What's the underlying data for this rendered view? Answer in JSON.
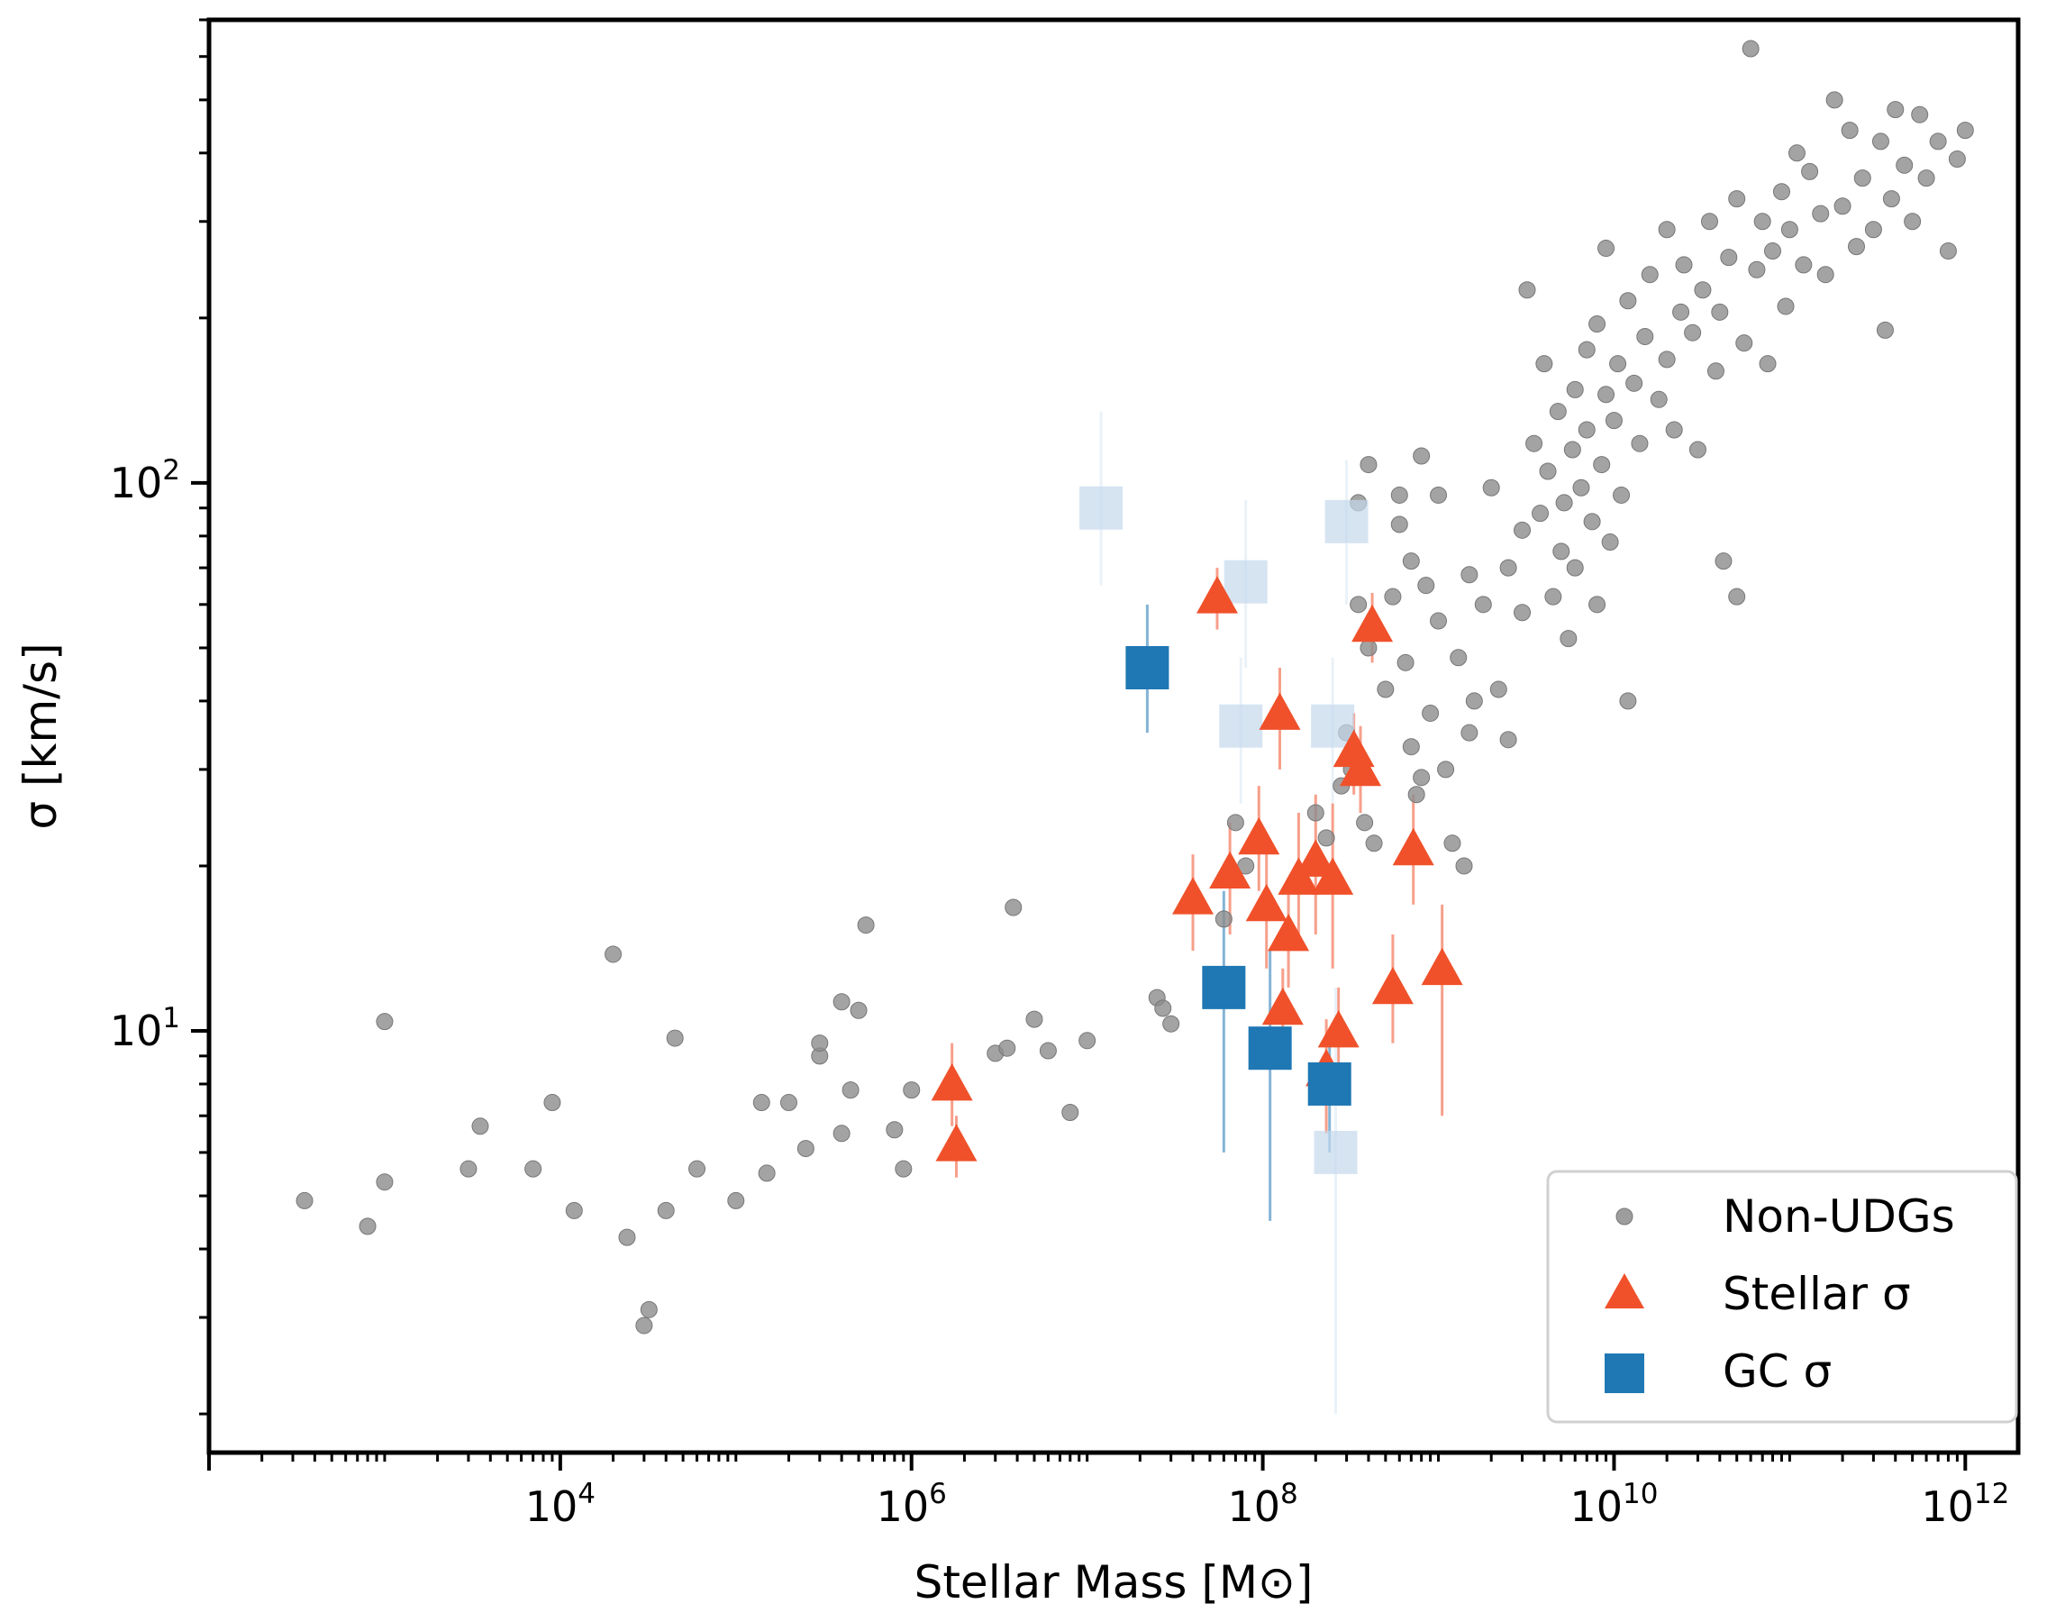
{
  "chart_data": {
    "type": "scatter",
    "xlabel": "Stellar Mass [M⊙]",
    "ylabel": "σ [km/s]",
    "xscale": "log",
    "yscale": "log",
    "xlim": [
      100,
      2000000000000
    ],
    "ylim": [
      1.7,
      700
    ],
    "x_ticks": [
      {
        "value": 10000,
        "base": "10",
        "exp": "4"
      },
      {
        "value": 1000000,
        "base": "10",
        "exp": "6"
      },
      {
        "value": 100000000,
        "base": "10",
        "exp": "8"
      },
      {
        "value": 10000000000,
        "base": "10",
        "exp": "10"
      },
      {
        "value": 1000000000000,
        "base": "10",
        "exp": "12"
      }
    ],
    "y_ticks": [
      {
        "value": 10,
        "base": "10",
        "exp": "1"
      },
      {
        "value": 100,
        "base": "10",
        "exp": "2"
      }
    ],
    "grid": false,
    "legend_position": "lower-right",
    "series": [
      {
        "name": "Non-UDGs",
        "marker": "circle",
        "color": "#8c8c8c",
        "points": [
          [
            350,
            4.9
          ],
          [
            800,
            4.4
          ],
          [
            1000,
            5.3
          ],
          [
            1000,
            10.4
          ],
          [
            3000,
            5.6
          ],
          [
            3500,
            6.7
          ],
          [
            7000,
            5.6
          ],
          [
            9000,
            7.4
          ],
          [
            12000,
            4.7
          ],
          [
            20000,
            13.8
          ],
          [
            24000,
            4.2
          ],
          [
            30000,
            2.9
          ],
          [
            32000,
            3.1
          ],
          [
            40000,
            4.7
          ],
          [
            45000,
            9.7
          ],
          [
            60000,
            5.6
          ],
          [
            100000,
            4.9
          ],
          [
            140000,
            7.4
          ],
          [
            150000,
            5.5
          ],
          [
            200000,
            7.4
          ],
          [
            250000,
            6.1
          ],
          [
            300000,
            9.0
          ],
          [
            300000,
            9.5
          ],
          [
            400000,
            6.5
          ],
          [
            400000,
            11.3
          ],
          [
            450000,
            7.8
          ],
          [
            500000,
            10.9
          ],
          [
            550000,
            15.6
          ],
          [
            800000,
            6.6
          ],
          [
            900000,
            5.6
          ],
          [
            1000000,
            7.8
          ],
          [
            3000000,
            9.1
          ],
          [
            3500000,
            9.3
          ],
          [
            3800000,
            16.8
          ],
          [
            5000000,
            10.5
          ],
          [
            6000000,
            9.2
          ],
          [
            8000000,
            7.1
          ],
          [
            10000000,
            9.6
          ],
          [
            25000000,
            11.5
          ],
          [
            27000000,
            11.0
          ],
          [
            30000000,
            10.3
          ],
          [
            60000000,
            16.0
          ],
          [
            70000000,
            24.0
          ],
          [
            80000000,
            20.0
          ],
          [
            200000000,
            25.0
          ],
          [
            230000000,
            22.5
          ],
          [
            280000000,
            28.0
          ],
          [
            300000000,
            35.0
          ],
          [
            320000000,
            30.0
          ],
          [
            350000000,
            60.0
          ],
          [
            350000000,
            92.0
          ],
          [
            380000000,
            24.0
          ],
          [
            400000000,
            108.0
          ],
          [
            400000000,
            50.0
          ],
          [
            430000000,
            22.0
          ],
          [
            500000000,
            42.0
          ],
          [
            550000000,
            62.0
          ],
          [
            600000000,
            84.0
          ],
          [
            600000000,
            95.0
          ],
          [
            650000000,
            47.0
          ],
          [
            700000000,
            33.0
          ],
          [
            700000000,
            72.0
          ],
          [
            750000000,
            27.0
          ],
          [
            800000000,
            112.0
          ],
          [
            800000000,
            29.0
          ],
          [
            850000000,
            65.0
          ],
          [
            900000000,
            38.0
          ],
          [
            1000000000,
            56.0
          ],
          [
            1000000000,
            95.0
          ],
          [
            1100000000,
            30.0
          ],
          [
            1200000000,
            22.0
          ],
          [
            1300000000,
            48.0
          ],
          [
            1400000000,
            20.0
          ],
          [
            1500000000,
            68.0
          ],
          [
            1500000000,
            35.0
          ],
          [
            1600000000,
            40.0
          ],
          [
            1800000000,
            60.0
          ],
          [
            2000000000,
            98.0
          ],
          [
            2200000000,
            42.0
          ],
          [
            2500000000,
            70.0
          ],
          [
            2500000000,
            34.0
          ],
          [
            3000000000,
            82.0
          ],
          [
            3000000000,
            58.0
          ],
          [
            3200000000,
            225.0
          ],
          [
            3500000000,
            118.0
          ],
          [
            3800000000,
            88.0
          ],
          [
            4000000000,
            165.0
          ],
          [
            4200000000,
            105.0
          ],
          [
            4500000000,
            62.0
          ],
          [
            4800000000,
            135.0
          ],
          [
            5000000000,
            75.0
          ],
          [
            5200000000,
            92.0
          ],
          [
            5500000000,
            52.0
          ],
          [
            5800000000,
            115.0
          ],
          [
            6000000000,
            148.0
          ],
          [
            6000000000,
            70.0
          ],
          [
            6500000000,
            98.0
          ],
          [
            7000000000,
            125.0
          ],
          [
            7000000000,
            175.0
          ],
          [
            7500000000,
            85.0
          ],
          [
            8000000000,
            195.0
          ],
          [
            8000000000,
            60.0
          ],
          [
            8500000000,
            108.0
          ],
          [
            9000000000,
            268.0
          ],
          [
            9000000000,
            145.0
          ],
          [
            9500000000,
            78.0
          ],
          [
            10000000000,
            130.0
          ],
          [
            10500000000,
            165.0
          ],
          [
            11000000000,
            95.0
          ],
          [
            12000000000,
            215.0
          ],
          [
            12000000000,
            40.0
          ],
          [
            13000000000,
            152.0
          ],
          [
            14000000000,
            118.0
          ],
          [
            15000000000,
            185.0
          ],
          [
            16000000000,
            240.0
          ],
          [
            18000000000,
            142.0
          ],
          [
            20000000000,
            168.0
          ],
          [
            20000000000,
            290.0
          ],
          [
            22000000000,
            125.0
          ],
          [
            24000000000,
            205.0
          ],
          [
            25000000000,
            250.0
          ],
          [
            28000000000,
            188.0
          ],
          [
            30000000000,
            115.0
          ],
          [
            32000000000,
            225.0
          ],
          [
            35000000000,
            300.0
          ],
          [
            38000000000,
            160.0
          ],
          [
            40000000000,
            205.0
          ],
          [
            42000000000,
            72.0
          ],
          [
            45000000000,
            258.0
          ],
          [
            50000000000,
            62.0
          ],
          [
            50000000000,
            330.0
          ],
          [
            55000000000,
            180.0
          ],
          [
            60000000000,
            620.0
          ],
          [
            65000000000,
            245.0
          ],
          [
            70000000000,
            300.0
          ],
          [
            75000000000,
            165.0
          ],
          [
            80000000000,
            265.0
          ],
          [
            90000000000,
            340.0
          ],
          [
            95000000000,
            210.0
          ],
          [
            100000000000,
            290.0
          ],
          [
            110000000000,
            400.0
          ],
          [
            120000000000,
            250.0
          ],
          [
            130000000000,
            370.0
          ],
          [
            150000000000,
            310.0
          ],
          [
            160000000000,
            240.0
          ],
          [
            180000000000,
            500.0
          ],
          [
            200000000000,
            320.0
          ],
          [
            220000000000,
            440.0
          ],
          [
            240000000000,
            270.0
          ],
          [
            260000000000,
            360.0
          ],
          [
            300000000000,
            290.0
          ],
          [
            330000000000,
            420.0
          ],
          [
            350000000000,
            190.0
          ],
          [
            380000000000,
            330.0
          ],
          [
            400000000000,
            480.0
          ],
          [
            450000000000,
            380.0
          ],
          [
            500000000000,
            300.0
          ],
          [
            550000000000,
            470.0
          ],
          [
            600000000000,
            360.0
          ],
          [
            700000000000,
            420.0
          ],
          [
            800000000000,
            265.0
          ],
          [
            900000000000,
            390.0
          ],
          [
            1000000000000,
            440.0
          ]
        ]
      },
      {
        "name": "Stellar σ",
        "marker": "triangle",
        "color": "#f0512a",
        "points": [
          {
            "x": 1700000,
            "y": 8.0,
            "err": [
              6.7,
              9.5
            ]
          },
          {
            "x": 1800000,
            "y": 6.2,
            "err": [
              5.4,
              7.0
            ]
          },
          {
            "x": 40000000,
            "y": 17.5,
            "err": [
              14.0,
              21.0
            ]
          },
          {
            "x": 55000000,
            "y": 62.0,
            "err": [
              54.0,
              70.0
            ]
          },
          {
            "x": 65000000,
            "y": 19.5,
            "err": [
              15.0,
              24.0
            ]
          },
          {
            "x": 95000000,
            "y": 22.5,
            "err": [
              18.0,
              28.0
            ]
          },
          {
            "x": 105000000,
            "y": 17.0,
            "err": [
              13.0,
              21.0
            ]
          },
          {
            "x": 125000000,
            "y": 38.0,
            "err": [
              30.0,
              46.0
            ]
          },
          {
            "x": 130000000,
            "y": 11.0,
            "err": [
              9.0,
              13.0
            ]
          },
          {
            "x": 140000000,
            "y": 15.0,
            "err": [
              12.0,
              19.0
            ]
          },
          {
            "x": 160000000,
            "y": 19.0,
            "err": [
              14.0,
              25.0
            ]
          },
          {
            "x": 200000000,
            "y": 20.5,
            "err": [
              15.0,
              27.0
            ]
          },
          {
            "x": 230000000,
            "y": 8.5,
            "err": [
              6.5,
              10.5
            ]
          },
          {
            "x": 250000000,
            "y": 19.0,
            "err": [
              13.0,
              26.0
            ]
          },
          {
            "x": 270000000,
            "y": 10.0,
            "err": [
              8.0,
              12.0
            ]
          },
          {
            "x": 330000000,
            "y": 32.5,
            "err": [
              27.0,
              38.0
            ]
          },
          {
            "x": 360000000,
            "y": 30.0,
            "err": [
              25.0,
              36.0
            ]
          },
          {
            "x": 420000000,
            "y": 55.0,
            "err": [
              47.0,
              63.0
            ]
          },
          {
            "x": 550000000,
            "y": 12.0,
            "err": [
              9.5,
              15.0
            ]
          },
          {
            "x": 720000000,
            "y": 21.5,
            "err": [
              17.0,
              27.0
            ]
          },
          {
            "x": 1050000000,
            "y": 13.0,
            "err": [
              7.0,
              17.0
            ]
          }
        ]
      },
      {
        "name": "GC σ",
        "marker": "square",
        "color": "#1f77b4",
        "points": [
          {
            "x": 22000000,
            "y": 46.0,
            "err": [
              35.0,
              60.0
            ]
          },
          {
            "x": 60000000,
            "y": 12.0,
            "err": [
              6.0,
              18.0
            ]
          },
          {
            "x": 110000000,
            "y": 9.3,
            "err": [
              4.5,
              14.0
            ]
          },
          {
            "x": 240000000,
            "y": 8.0,
            "err": [
              6.0,
              10.0
            ]
          }
        ]
      },
      {
        "marker": "square",
        "color": "#c4d9ec",
        "points": [
          {
            "x": 12000000,
            "y": 90.0,
            "err": [
              65.0,
              135.0
            ]
          },
          {
            "x": 75000000,
            "y": 36.0,
            "err": [
              26.0,
              48.0
            ]
          },
          {
            "x": 80000000,
            "y": 66.0,
            "err": [
              46.0,
              93.0
            ]
          },
          {
            "x": 250000000,
            "y": 36.0,
            "err": [
              26.0,
              48.0
            ]
          },
          {
            "x": 260000000,
            "y": 6.0,
            "err": [
              2.0,
              12.0
            ]
          },
          {
            "x": 300000000,
            "y": 85.0,
            "err": [
              60.0,
              110.0
            ]
          }
        ]
      }
    ]
  }
}
